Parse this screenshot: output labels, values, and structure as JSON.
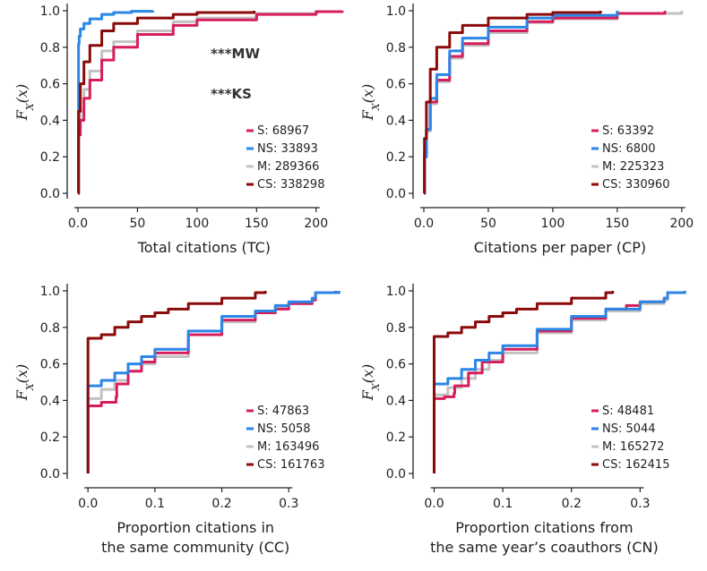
{
  "colors": {
    "S": "#d61f5a",
    "NS": "#2b86e6",
    "M": "#c2c2c2",
    "CS": "#8b0a0a"
  },
  "y_axis_label": "F_X(x)",
  "chart_data": [
    {
      "type": "line",
      "subtype": "ecdf",
      "title": "",
      "xlabel": [
        "Total citations (TC)"
      ],
      "ylabel": "F_X(x)",
      "xlim": [
        0,
        222
      ],
      "ylim": [
        0,
        1
      ],
      "xticks": [
        0,
        50,
        100,
        150,
        200
      ],
      "yticks": [
        0.0,
        0.2,
        0.4,
        0.6,
        0.8,
        1.0
      ],
      "annotations": [
        "***MW",
        "***KS"
      ],
      "series": [
        {
          "key": "S",
          "name": "S: 68967",
          "x": [
            0,
            0.5,
            2,
            5,
            10,
            20,
            30,
            50,
            80,
            100,
            150,
            200,
            222
          ],
          "y": [
            0,
            0.32,
            0.4,
            0.52,
            0.62,
            0.73,
            0.8,
            0.87,
            0.92,
            0.95,
            0.98,
            0.995,
            1.0
          ]
        },
        {
          "key": "NS",
          "name": "NS: 33893",
          "x": [
            0,
            0.5,
            1,
            2,
            5,
            10,
            20,
            30,
            45,
            63
          ],
          "y": [
            0,
            0.82,
            0.86,
            0.9,
            0.93,
            0.955,
            0.98,
            0.99,
            0.997,
            1.0
          ]
        },
        {
          "key": "M",
          "name": "M: 289366",
          "x": [
            0,
            0.5,
            2,
            5,
            10,
            20,
            30,
            50,
            80,
            100,
            150,
            200
          ],
          "y": [
            0,
            0.36,
            0.45,
            0.57,
            0.67,
            0.78,
            0.83,
            0.89,
            0.94,
            0.96,
            0.985,
            1.0
          ]
        },
        {
          "key": "CS",
          "name": "CS: 338298",
          "x": [
            0,
            0.5,
            2,
            5,
            10,
            20,
            30,
            50,
            80,
            100,
            148
          ],
          "y": [
            0,
            0.45,
            0.6,
            0.72,
            0.81,
            0.89,
            0.93,
            0.96,
            0.98,
            0.99,
            1.0
          ]
        }
      ]
    },
    {
      "type": "line",
      "subtype": "ecdf",
      "title": "",
      "xlabel": [
        "Citations per paper (CP)"
      ],
      "ylabel": "F_X(x)",
      "xlim": [
        0,
        205
      ],
      "ylim": [
        0,
        1
      ],
      "xticks": [
        0,
        50,
        100,
        150,
        200
      ],
      "yticks": [
        0.0,
        0.2,
        0.4,
        0.6,
        0.8,
        1.0
      ],
      "annotations": [],
      "series": [
        {
          "key": "S",
          "name": "S: 63392",
          "x": [
            0,
            0.5,
            2,
            5,
            10,
            20,
            30,
            50,
            80,
            100,
            150,
            187
          ],
          "y": [
            0,
            0.22,
            0.35,
            0.5,
            0.62,
            0.75,
            0.82,
            0.89,
            0.94,
            0.96,
            0.985,
            1.0
          ]
        },
        {
          "key": "NS",
          "name": "NS: 6800",
          "x": [
            0,
            0.5,
            2,
            5,
            10,
            20,
            30,
            50,
            80,
            100,
            150
          ],
          "y": [
            0,
            0.2,
            0.35,
            0.52,
            0.65,
            0.78,
            0.85,
            0.91,
            0.96,
            0.975,
            1.0
          ]
        },
        {
          "key": "M",
          "name": "M: 225323",
          "x": [
            0,
            0.5,
            2,
            5,
            10,
            20,
            30,
            50,
            80,
            100,
            150,
            200
          ],
          "y": [
            0,
            0.2,
            0.34,
            0.49,
            0.61,
            0.74,
            0.81,
            0.88,
            0.935,
            0.955,
            0.985,
            1.0
          ]
        },
        {
          "key": "CS",
          "name": "CS: 330960",
          "x": [
            0,
            0.5,
            2,
            5,
            10,
            20,
            30,
            50,
            80,
            100,
            137
          ],
          "y": [
            0,
            0.3,
            0.5,
            0.68,
            0.8,
            0.88,
            0.92,
            0.96,
            0.98,
            0.99,
            1.0
          ]
        }
      ]
    },
    {
      "type": "line",
      "subtype": "ecdf",
      "title": "",
      "xlabel": [
        "Proportion citations in",
        "the same community (CC)"
      ],
      "ylabel": "F_X(x)",
      "xlim": [
        -0.015,
        0.38
      ],
      "ylim": [
        0,
        1
      ],
      "xticks": [
        0.0,
        0.1,
        0.2,
        0.3
      ],
      "yticks": [
        0.0,
        0.2,
        0.4,
        0.6,
        0.8,
        1.0
      ],
      "annotations": [],
      "series": [
        {
          "key": "S",
          "name": "S: 47863",
          "x": [
            0,
            0.0,
            0.02,
            0.042,
            0.043,
            0.06,
            0.08,
            0.1,
            0.15,
            0.2,
            0.25,
            0.28,
            0.3,
            0.335,
            0.34,
            0.37
          ],
          "y": [
            0,
            0.37,
            0.39,
            0.42,
            0.49,
            0.56,
            0.61,
            0.66,
            0.76,
            0.84,
            0.88,
            0.9,
            0.93,
            0.95,
            0.99,
            1.0
          ]
        },
        {
          "key": "NS",
          "name": "NS: 5058",
          "x": [
            0,
            0.0,
            0.02,
            0.04,
            0.06,
            0.08,
            0.1,
            0.15,
            0.2,
            0.25,
            0.28,
            0.3,
            0.335,
            0.34,
            0.375
          ],
          "y": [
            0,
            0.48,
            0.51,
            0.55,
            0.6,
            0.64,
            0.68,
            0.78,
            0.86,
            0.89,
            0.92,
            0.94,
            0.96,
            0.99,
            1.0
          ]
        },
        {
          "key": "M",
          "name": "M: 163496",
          "x": [
            0,
            0.0,
            0.02,
            0.04,
            0.06,
            0.08,
            0.1,
            0.15,
            0.2,
            0.25,
            0.28,
            0.3,
            0.335,
            0.34,
            0.375
          ],
          "y": [
            0,
            0.41,
            0.46,
            0.51,
            0.56,
            0.6,
            0.64,
            0.76,
            0.83,
            0.88,
            0.91,
            0.93,
            0.95,
            0.99,
            1.0
          ]
        },
        {
          "key": "CS",
          "name": "CS: 161763",
          "x": [
            0,
            0.0,
            0.02,
            0.04,
            0.06,
            0.08,
            0.1,
            0.12,
            0.15,
            0.2,
            0.25,
            0.265
          ],
          "y": [
            0,
            0.74,
            0.76,
            0.8,
            0.83,
            0.86,
            0.88,
            0.9,
            0.93,
            0.96,
            0.99,
            1.0
          ]
        }
      ]
    },
    {
      "type": "line",
      "subtype": "ecdf",
      "title": "",
      "xlabel": [
        "Proportion citations from",
        "the same year’s coauthors (CN)"
      ],
      "ylabel": "F_X(x)",
      "xlim": [
        -0.015,
        0.37
      ],
      "ylim": [
        0,
        1
      ],
      "xticks": [
        0.0,
        0.1,
        0.2,
        0.3
      ],
      "yticks": [
        0.0,
        0.2,
        0.4,
        0.6,
        0.8,
        1.0
      ],
      "annotations": [],
      "series": [
        {
          "key": "S",
          "name": "S: 48481",
          "x": [
            0,
            0.0,
            0.015,
            0.029,
            0.03,
            0.05,
            0.07,
            0.1,
            0.15,
            0.2,
            0.25,
            0.28,
            0.3,
            0.335,
            0.34,
            0.365
          ],
          "y": [
            0,
            0.41,
            0.42,
            0.44,
            0.48,
            0.55,
            0.61,
            0.68,
            0.78,
            0.85,
            0.9,
            0.92,
            0.94,
            0.96,
            0.99,
            1.0
          ]
        },
        {
          "key": "NS",
          "name": "NS: 5044",
          "x": [
            0,
            0.0,
            0.02,
            0.04,
            0.06,
            0.08,
            0.1,
            0.15,
            0.2,
            0.25,
            0.3,
            0.335,
            0.34,
            0.365
          ],
          "y": [
            0,
            0.49,
            0.52,
            0.57,
            0.62,
            0.66,
            0.7,
            0.79,
            0.86,
            0.9,
            0.94,
            0.96,
            0.99,
            1.0
          ]
        },
        {
          "key": "M",
          "name": "M: 165272",
          "x": [
            0,
            0.0,
            0.02,
            0.04,
            0.06,
            0.08,
            0.1,
            0.15,
            0.2,
            0.25,
            0.3,
            0.335,
            0.34,
            0.365
          ],
          "y": [
            0,
            0.43,
            0.47,
            0.52,
            0.57,
            0.62,
            0.66,
            0.77,
            0.84,
            0.89,
            0.93,
            0.95,
            0.99,
            1.0
          ]
        },
        {
          "key": "CS",
          "name": "CS: 162415",
          "x": [
            0,
            0.0,
            0.02,
            0.04,
            0.06,
            0.08,
            0.1,
            0.12,
            0.15,
            0.2,
            0.25,
            0.26
          ],
          "y": [
            0,
            0.75,
            0.77,
            0.8,
            0.83,
            0.86,
            0.88,
            0.9,
            0.93,
            0.96,
            0.99,
            1.0
          ]
        }
      ]
    }
  ]
}
